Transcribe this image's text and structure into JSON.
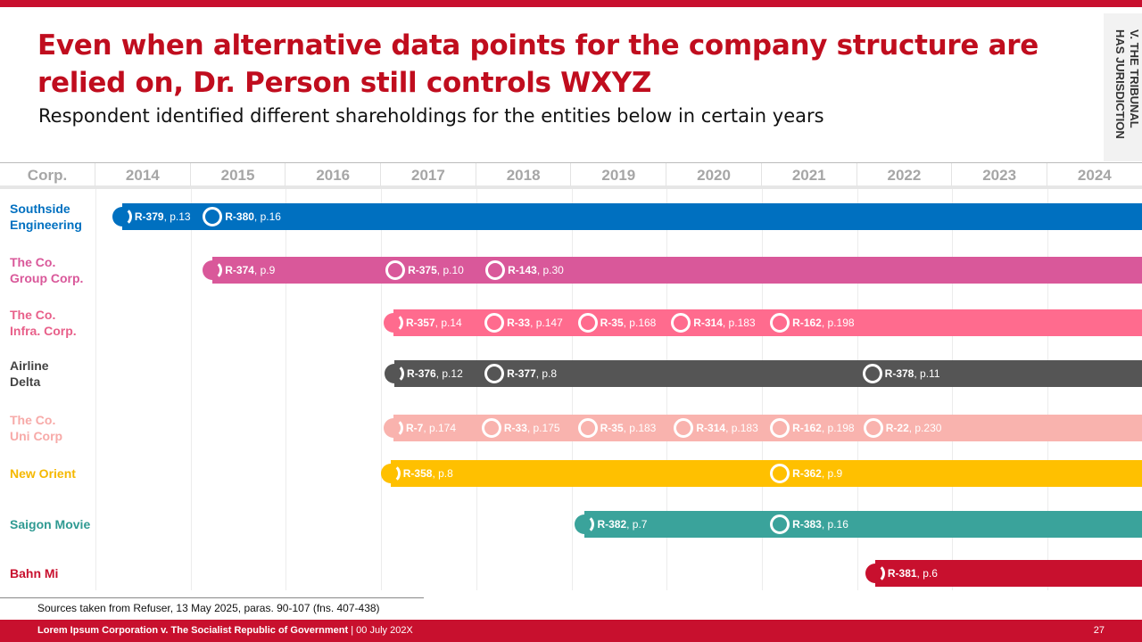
{
  "slide": {
    "title": "Even when alternative data points for the company structure are relied on, Dr. Person still controls WXYZ",
    "subtitle": "Respondent identified different shareholdings for the entities below in certain years",
    "side_tab": "V. THE TRIBUNAL\nHAS JURISDICTION",
    "footnote": "Sources taken from Refuser, 13 May 2025, paras. 90-107 (fns. 407-438)",
    "footer_case": "Lorem Ipsum Corporation v. The Socialist Republic of Government",
    "footer_sep": " | ",
    "footer_date": "00 July 202X",
    "page_number": "27"
  },
  "chart_data": {
    "type": "timeline",
    "corp_header": "Corp.",
    "years": [
      "2014",
      "2015",
      "2016",
      "2017",
      "2018",
      "2019",
      "2020",
      "2021",
      "2022",
      "2023",
      "2024"
    ],
    "rows": [
      {
        "name": "Southside Engineering",
        "color": "#0070c0",
        "label_color": "#0070c0",
        "markers": [
          {
            "at": 2014.28,
            "ref": "R-379",
            "page": ", p.13",
            "filled": true
          },
          {
            "at": 2015.23,
            "ref": "R-380",
            "page": ", p.16"
          }
        ]
      },
      {
        "name": "The Co. Group Corp.",
        "color": "#d9589a",
        "label_color": "#d9589a",
        "markers": [
          {
            "at": 2015.23,
            "ref": "R-374",
            "page": ", p.9",
            "filled": true
          },
          {
            "at": 2017.15,
            "ref": "R-375",
            "page": ", p.10"
          },
          {
            "at": 2018.2,
            "ref": "R-143",
            "page": ", p.30"
          }
        ]
      },
      {
        "name": "The Co. Infra. Corp.",
        "color": "#ff6b8e",
        "label_color": "#e8608a",
        "markers": [
          {
            "at": 2017.13,
            "ref": "R-357",
            "page": ", p.14",
            "filled": true
          },
          {
            "at": 2018.19,
            "ref": "R-33",
            "page": ", p.147"
          },
          {
            "at": 2019.17,
            "ref": "R-35",
            "page": ", p.168"
          },
          {
            "at": 2020.15,
            "ref": "R-314",
            "page": ", p.183"
          },
          {
            "at": 2021.19,
            "ref": "R-162",
            "page": ", p.198"
          }
        ]
      },
      {
        "name": "Airline Delta",
        "color": "#555555",
        "label_color": "#444444",
        "markers": [
          {
            "at": 2017.14,
            "ref": "R-376",
            "page": ", p.12",
            "filled": true
          },
          {
            "at": 2018.19,
            "ref": "R-377",
            "page": ", p.8"
          },
          {
            "at": 2022.16,
            "ref": "R-378",
            "page": ", p.11"
          }
        ]
      },
      {
        "name": "The Co. Uni Corp",
        "color": "#f9b3ae",
        "label_color": "#f7aaa8",
        "markers": [
          {
            "at": 2017.13,
            "ref": "R-7",
            "page": ", p.174",
            "filled": true
          },
          {
            "at": 2018.16,
            "ref": "R-33",
            "page": ", p.175"
          },
          {
            "at": 2019.17,
            "ref": "R-35",
            "page": ", p.183"
          },
          {
            "at": 2020.18,
            "ref": "R-314",
            "page": ", p.183"
          },
          {
            "at": 2021.19,
            "ref": "R-162",
            "page": ", p.198"
          },
          {
            "at": 2022.17,
            "ref": "R-22",
            "page": ", p.230"
          }
        ]
      },
      {
        "name": "New Orient",
        "color": "#ffc000",
        "label_color": "#f5b800",
        "markers": [
          {
            "at": 2017.1,
            "ref": "R-358",
            "page": ", p.8",
            "filled": true
          },
          {
            "at": 2021.19,
            "ref": "R-362",
            "page": ", p.9"
          }
        ]
      },
      {
        "name": "Saigon Movie",
        "color": "#3aa39b",
        "label_color": "#2f9a92",
        "markers": [
          {
            "at": 2019.14,
            "ref": "R-382",
            "page": ", p.7",
            "filled": true
          },
          {
            "at": 2021.19,
            "ref": "R-383",
            "page": ", p.16"
          }
        ]
      },
      {
        "name": "Bahn Mi",
        "color": "#c8102e",
        "label_color": "#c8102e",
        "markers": [
          {
            "at": 2022.19,
            "ref": "R-381",
            "page": ", p.6",
            "filled": true
          }
        ]
      }
    ]
  }
}
